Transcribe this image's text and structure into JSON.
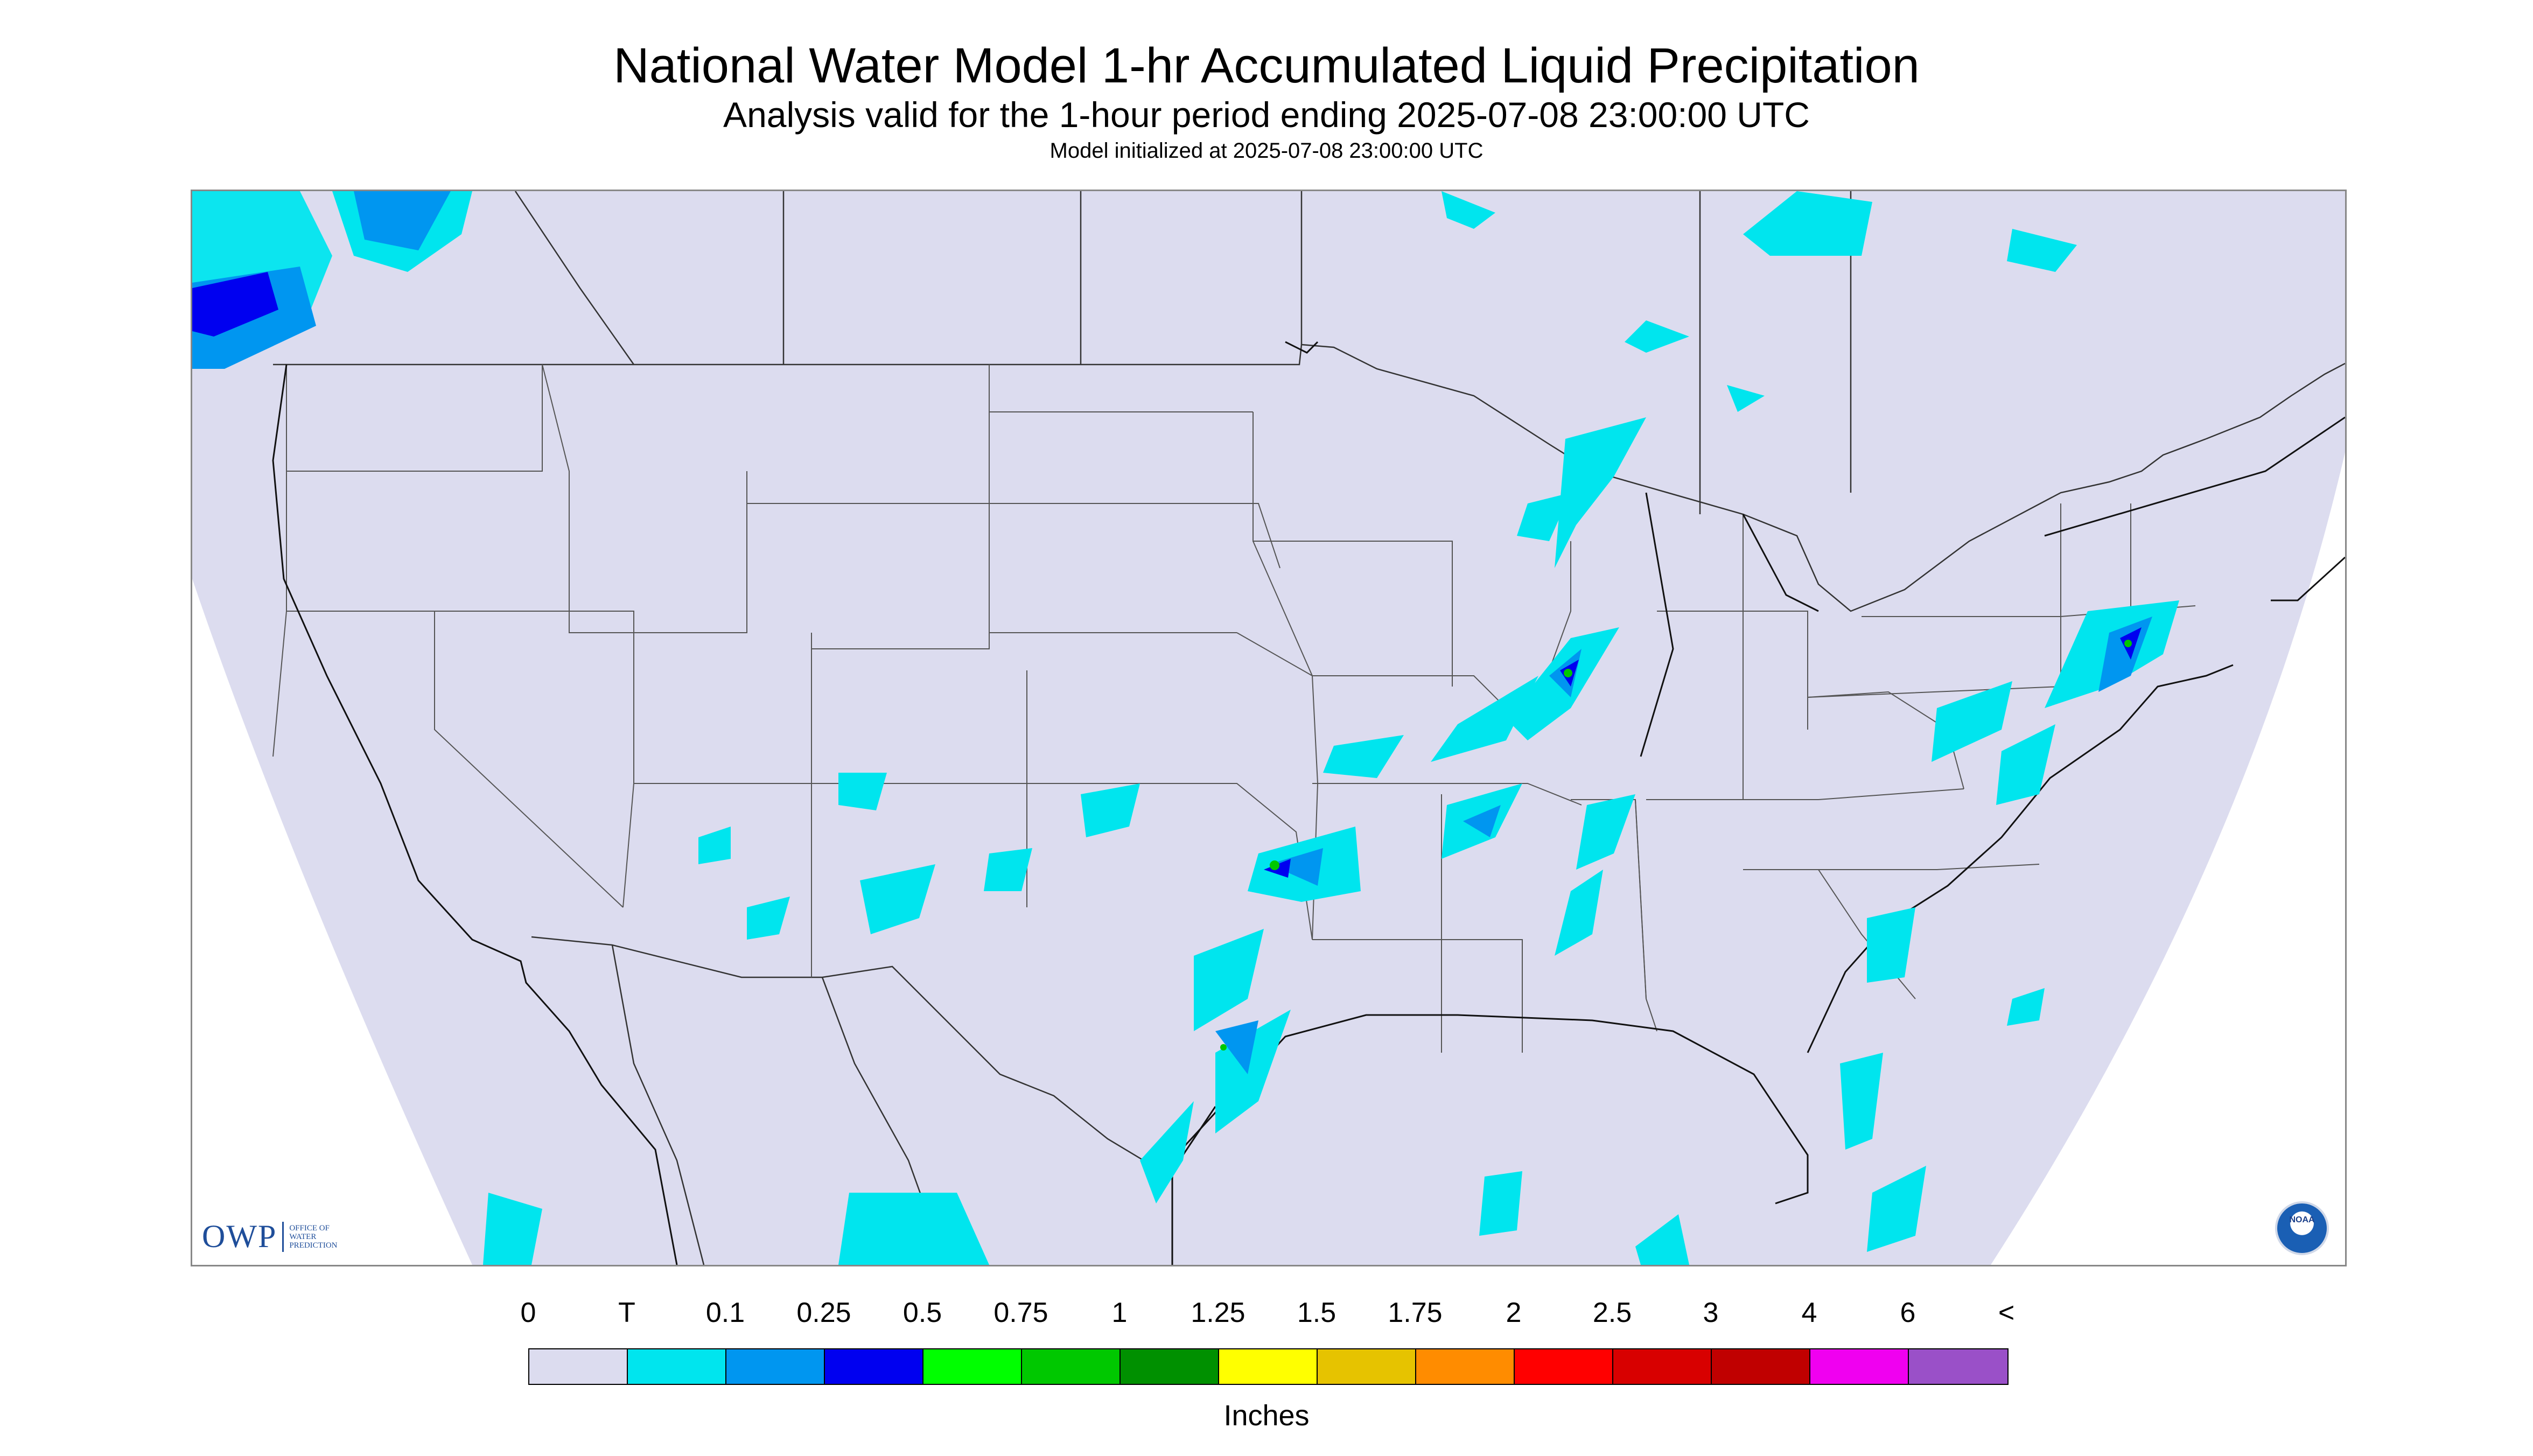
{
  "titles": {
    "main": "National Water Model 1-hr Accumulated Liquid Precipitation",
    "sub": "Analysis valid for the 1-hour period ending 2025-07-08 23:00:00 UTC",
    "init": "Model initialized at 2025-07-08 23:00:00 UTC"
  },
  "logos": {
    "owp_big": "OWP",
    "owp_small": "OFFICE OF\nWATER\nPREDICTION",
    "noaa": "NOAA"
  },
  "legend": {
    "labels": [
      "0",
      "T",
      "0.1",
      "0.25",
      "0.5",
      "0.75",
      "1",
      "1.25",
      "1.5",
      "1.75",
      "2",
      "2.5",
      "3",
      "4",
      "6",
      "<"
    ],
    "colors": [
      "#dcdcef",
      "#00e5ee",
      "#0096f0",
      "#0000f0",
      "#00ff00",
      "#00c800",
      "#009000",
      "#ffff00",
      "#e6c300",
      "#ff8c00",
      "#ff0000",
      "#d80000",
      "#c00000",
      "#f000f0",
      "#9a50c8"
    ],
    "units": "Inches"
  },
  "map": {
    "background_color": "#dcdcef",
    "outside_color": "#ffffff",
    "boundary_color": "#000000"
  }
}
